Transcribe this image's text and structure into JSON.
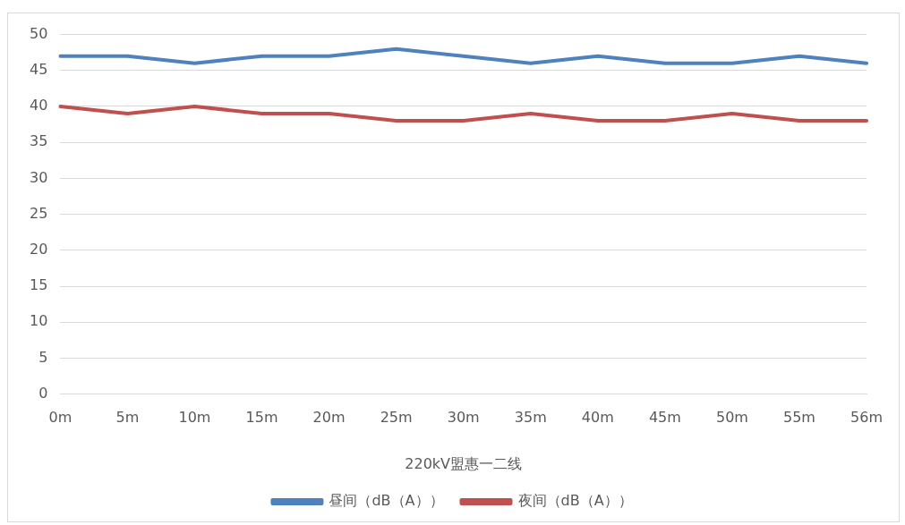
{
  "chart_data": {
    "type": "line",
    "xlabel": "220kV盟惠一二线",
    "categories": [
      "0m",
      "5m",
      "10m",
      "15m",
      "20m",
      "25m",
      "30m",
      "35m",
      "40m",
      "45m",
      "50m",
      "55m",
      "56m"
    ],
    "series": [
      {
        "name": "昼间（dB（A））",
        "color": "#4f81bd",
        "values": [
          47,
          47,
          46,
          47,
          47,
          48,
          47,
          46,
          47,
          46,
          46,
          47,
          46
        ]
      },
      {
        "name": "夜间（dB（A））",
        "color": "#c0504d",
        "values": [
          40,
          39,
          40,
          39,
          39,
          38,
          38,
          39,
          38,
          38,
          39,
          38,
          38
        ]
      }
    ],
    "ylim": [
      0,
      50
    ],
    "yticks": [
      0,
      5,
      10,
      15,
      20,
      25,
      30,
      35,
      40,
      45,
      50
    ],
    "grid": "y",
    "legend": "bottom",
    "marker": "none",
    "line_style": "solid"
  }
}
